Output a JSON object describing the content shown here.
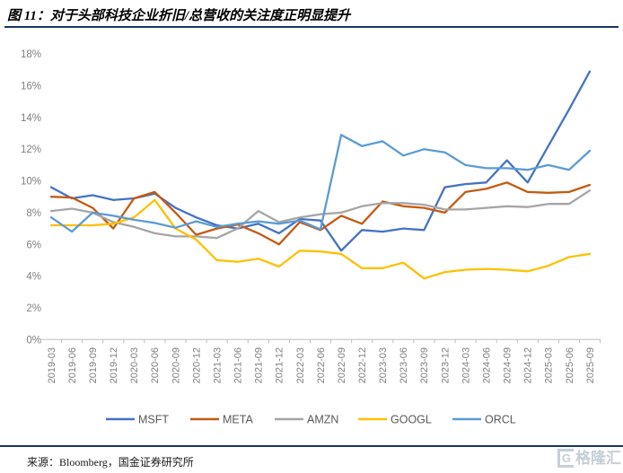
{
  "header": {
    "title": "图 11：对于头部科技企业折旧/总营收的关注度正明显提升"
  },
  "chart_data": {
    "type": "line",
    "title": "对于头部科技企业折旧/总营收的关注度正明显提升",
    "xlabel": "",
    "ylabel": "",
    "ylim": [
      0,
      18
    ],
    "y_ticks": [
      0,
      2,
      4,
      6,
      8,
      10,
      12,
      14,
      16,
      18
    ],
    "y_tick_suffix": "%",
    "grid": false,
    "legend_position": "bottom",
    "axis_color": "#BFBFBF",
    "tick_label_color": "#7F7F7F",
    "legend_text_color": "#595959",
    "categories": [
      "2019-03",
      "2019-06",
      "2019-09",
      "2019-12",
      "2020-03",
      "2020-06",
      "2020-09",
      "2020-12",
      "2021-03",
      "2021-06",
      "2021-09",
      "2021-12",
      "2022-03",
      "2022-06",
      "2022-09",
      "2022-12",
      "2023-03",
      "2023-06",
      "2023-09",
      "2023-12",
      "2024-03",
      "2024-06",
      "2024-09",
      "2024-12",
      "2025-03",
      "2025-06",
      "2025-09"
    ],
    "series": [
      {
        "name": "MSFT",
        "color": "#4472C4",
        "values": [
          9.6,
          8.9,
          9.1,
          8.8,
          8.9,
          9.2,
          8.3,
          7.7,
          7.2,
          7.0,
          7.3,
          6.7,
          7.6,
          7.5,
          5.6,
          6.9,
          6.8,
          7.0,
          6.9,
          9.6,
          9.8,
          9.9,
          11.3,
          9.9,
          12.2,
          14.5,
          16.9
        ]
      },
      {
        "name": "META",
        "color": "#C55A11",
        "values": [
          9.0,
          8.95,
          8.3,
          7.0,
          8.9,
          9.3,
          8.0,
          6.6,
          7.0,
          7.25,
          6.7,
          6.0,
          7.4,
          6.9,
          7.8,
          7.3,
          8.7,
          8.4,
          8.3,
          8.0,
          9.3,
          9.5,
          9.9,
          9.3,
          9.25,
          9.3,
          9.75
        ]
      },
      {
        "name": "AMZN",
        "color": "#A5A5A5",
        "values": [
          8.1,
          8.25,
          8.0,
          7.4,
          7.1,
          6.7,
          6.5,
          6.5,
          6.4,
          7.0,
          8.1,
          7.4,
          7.7,
          7.9,
          8.0,
          8.4,
          8.6,
          8.6,
          8.5,
          8.2,
          8.2,
          8.3,
          8.4,
          8.35,
          8.55,
          8.55,
          9.4
        ]
      },
      {
        "name": "GOOGL",
        "color": "#FFC000",
        "values": [
          7.2,
          7.2,
          7.2,
          7.3,
          7.7,
          8.8,
          7.0,
          6.3,
          5.0,
          4.9,
          5.1,
          4.6,
          5.6,
          5.55,
          5.4,
          4.5,
          4.5,
          4.85,
          3.85,
          4.25,
          4.4,
          4.45,
          4.4,
          4.3,
          4.65,
          5.2,
          5.4
        ]
      },
      {
        "name": "ORCL",
        "color": "#5B9BD5",
        "values": [
          7.7,
          6.8,
          8.0,
          7.8,
          7.55,
          7.35,
          7.05,
          7.45,
          7.1,
          7.3,
          7.45,
          7.3,
          7.5,
          6.95,
          12.9,
          12.2,
          12.5,
          11.6,
          12.0,
          11.8,
          11.0,
          10.8,
          10.8,
          10.7,
          11.0,
          10.7,
          11.9
        ]
      }
    ]
  },
  "footer": {
    "source": "来源：Bloomberg，国金证券研究所",
    "watermark": "格隆汇"
  }
}
